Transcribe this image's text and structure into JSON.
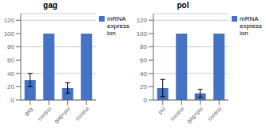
{
  "chart_data": [
    {
      "type": "bar",
      "title": "gag",
      "categories": [
        "gag",
        "control",
        "gag+pol",
        "control"
      ],
      "series": [
        {
          "name": "mRNA\nexpress\nion",
          "color": "#4472C4",
          "values": [
            30,
            100,
            18,
            100
          ],
          "errors": [
            10,
            0,
            8,
            0
          ]
        }
      ],
      "ylim": [
        0,
        130
      ],
      "yticks": [
        0,
        20,
        40,
        60,
        80,
        100,
        120
      ],
      "grid": true,
      "legend": "right"
    },
    {
      "type": "bar",
      "title": "pol",
      "categories": [
        "pol",
        "control",
        "gag+pol",
        "control"
      ],
      "series": [
        {
          "name": "mRNA\nexpress\nion",
          "color": "#4472C4",
          "values": [
            18,
            100,
            10,
            100
          ],
          "errors": [
            13,
            0,
            6,
            0
          ]
        }
      ],
      "ylim": [
        0,
        130
      ],
      "yticks": [
        0,
        20,
        40,
        60,
        80,
        100,
        120
      ],
      "grid": true,
      "legend": "right"
    }
  ]
}
